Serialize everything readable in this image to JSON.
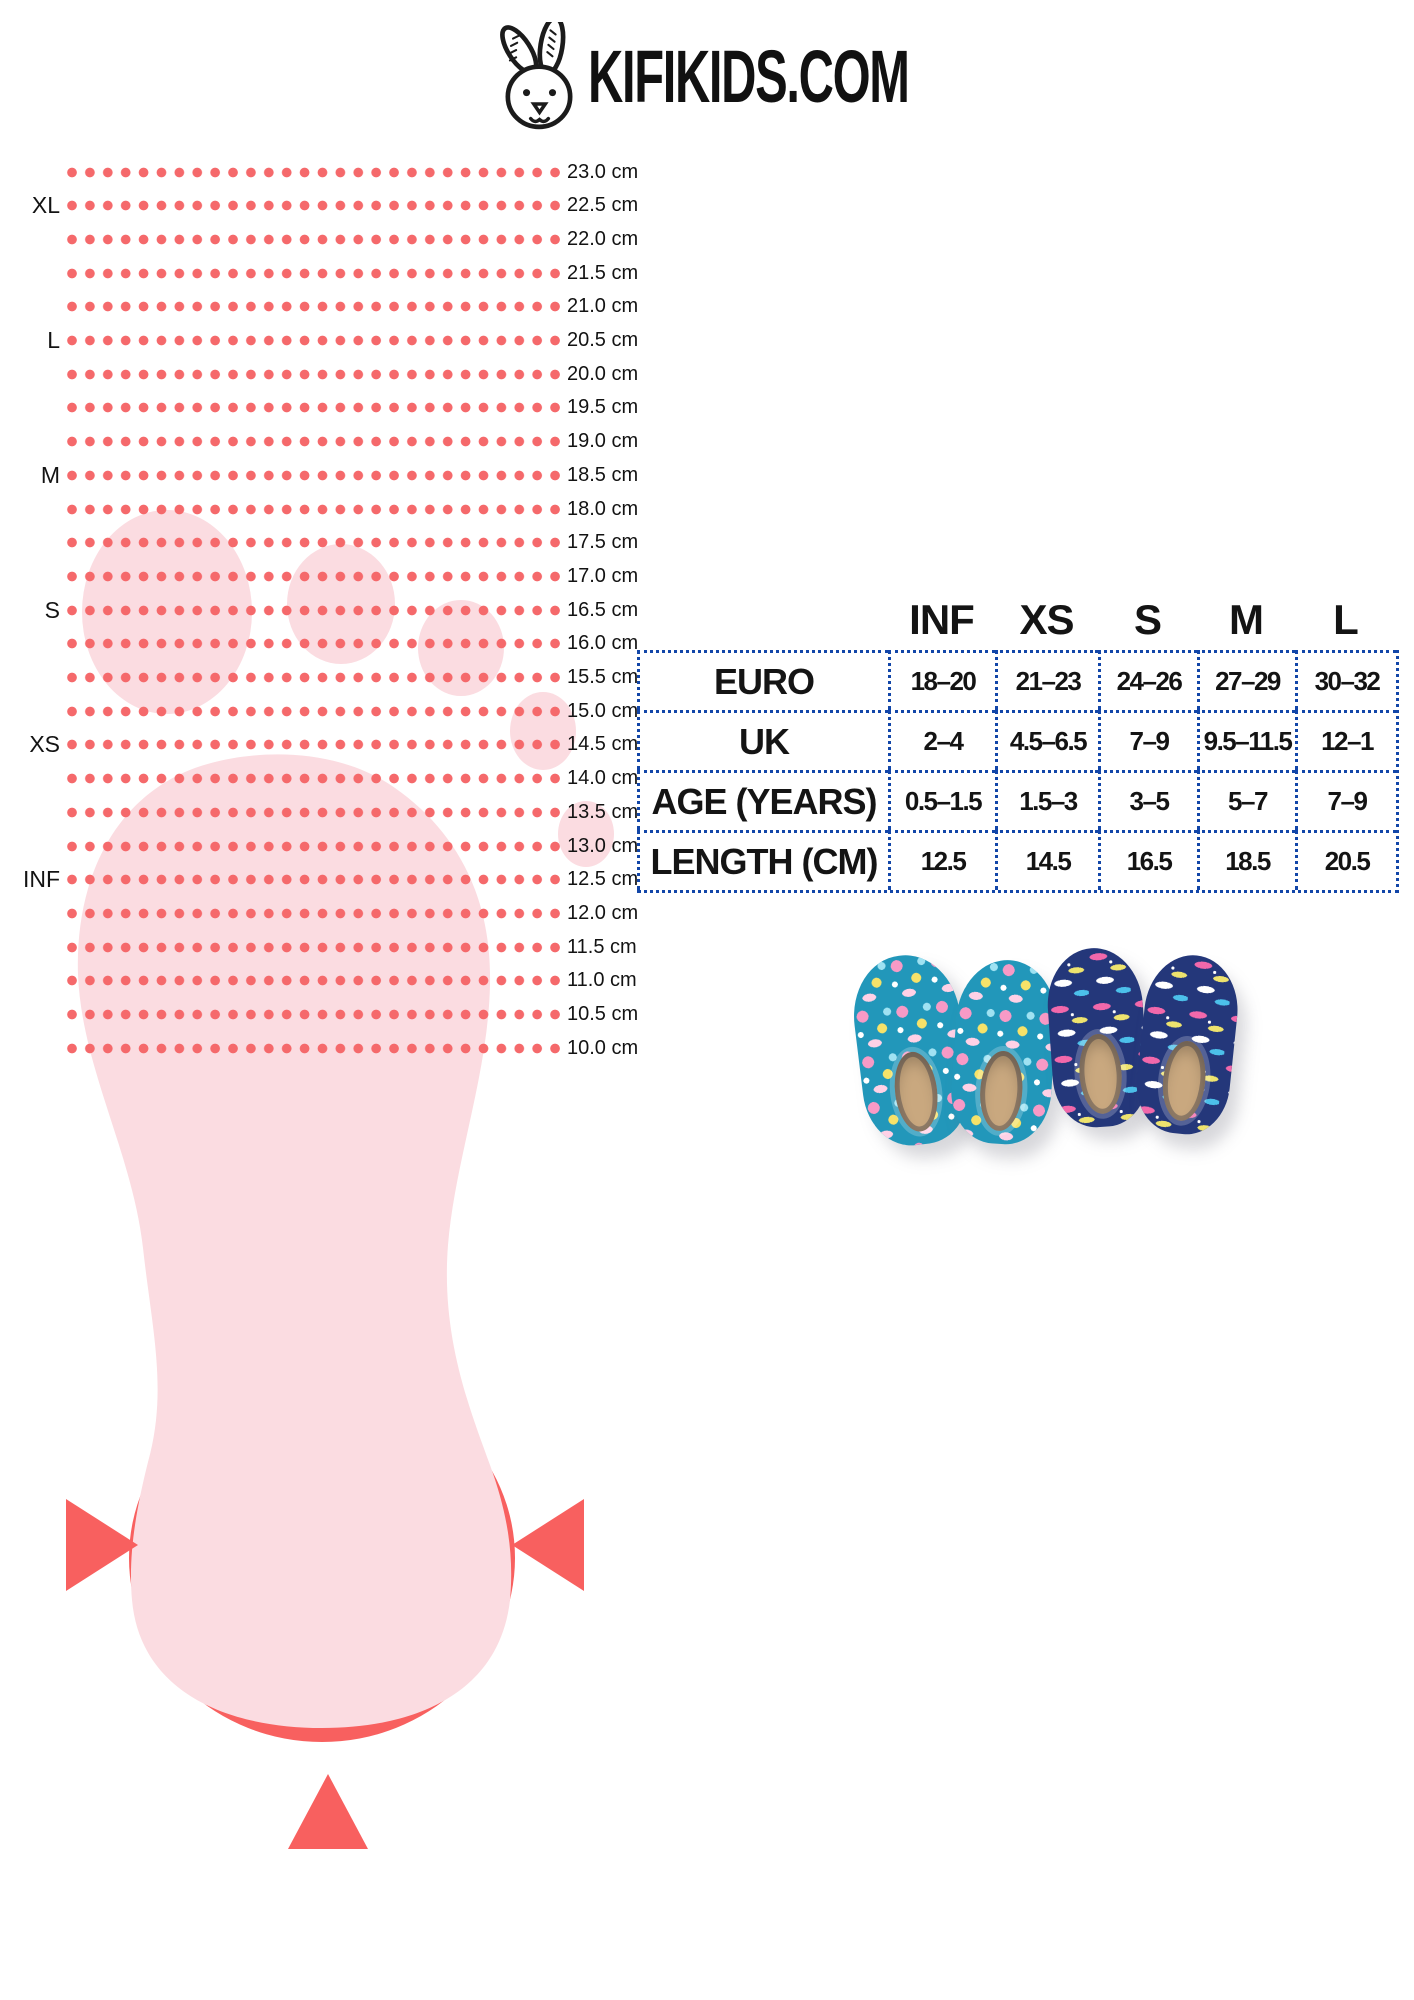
{
  "brand": {
    "site": "KIFIKIDS.COM",
    "logo_icon": "bunny-icon"
  },
  "colors": {
    "accent-red": "#f8605f",
    "dot-red": "#f5696b",
    "foot-pink": "#fbdce1",
    "table-blue": "#1246a8",
    "slipper-teal": "#2297ba",
    "slipper-navy": "#24377a",
    "sole-tan": "#c9a87f"
  },
  "ruler": {
    "rows": [
      {
        "cm": "23.0 cm",
        "size": ""
      },
      {
        "cm": "22.5 cm",
        "size": "XL"
      },
      {
        "cm": "22.0 cm",
        "size": ""
      },
      {
        "cm": "21.5 cm",
        "size": ""
      },
      {
        "cm": "21.0 cm",
        "size": ""
      },
      {
        "cm": "20.5 cm",
        "size": "L"
      },
      {
        "cm": "20.0 cm",
        "size": ""
      },
      {
        "cm": "19.5 cm",
        "size": ""
      },
      {
        "cm": "19.0 cm",
        "size": ""
      },
      {
        "cm": "18.5 cm",
        "size": "M"
      },
      {
        "cm": "18.0 cm",
        "size": ""
      },
      {
        "cm": "17.5 cm",
        "size": ""
      },
      {
        "cm": "17.0 cm",
        "size": ""
      },
      {
        "cm": "16.5 cm",
        "size": "S"
      },
      {
        "cm": "16.0 cm",
        "size": ""
      },
      {
        "cm": "15.5 cm",
        "size": ""
      },
      {
        "cm": "15.0 cm",
        "size": ""
      },
      {
        "cm": "14.5 cm",
        "size": "XS"
      },
      {
        "cm": "14.0 cm",
        "size": ""
      },
      {
        "cm": "13.5 cm",
        "size": ""
      },
      {
        "cm": "13.0 cm",
        "size": ""
      },
      {
        "cm": "12.5 cm",
        "size": "INF"
      },
      {
        "cm": "12.0 cm",
        "size": ""
      },
      {
        "cm": "11.5 cm",
        "size": ""
      },
      {
        "cm": "11.0 cm",
        "size": ""
      },
      {
        "cm": "10.5 cm",
        "size": ""
      },
      {
        "cm": "10.0 cm",
        "size": ""
      }
    ]
  },
  "size_table": {
    "column_headers": [
      "INF",
      "XS",
      "S",
      "M",
      "L"
    ],
    "rows": [
      {
        "label": "EURO",
        "values": [
          "18–20",
          "21–23",
          "24–26",
          "27–29",
          "30–32"
        ]
      },
      {
        "label": "UK",
        "values": [
          "2–4",
          "4.5–6.5",
          "7–9",
          "9.5–11.5",
          "12–1"
        ]
      },
      {
        "label": "AGE (YEARS)",
        "values": [
          "0.5–1.5",
          "1.5–3",
          "3–5",
          "5–7",
          "7–9"
        ]
      },
      {
        "label": "LENGTH (CM)",
        "values": [
          "12.5",
          "14.5",
          "16.5",
          "18.5",
          "20.5"
        ]
      }
    ]
  },
  "product_photo": {
    "items": [
      "teal mermaid water-shoe pair",
      "navy shark water-shoe pair"
    ]
  }
}
